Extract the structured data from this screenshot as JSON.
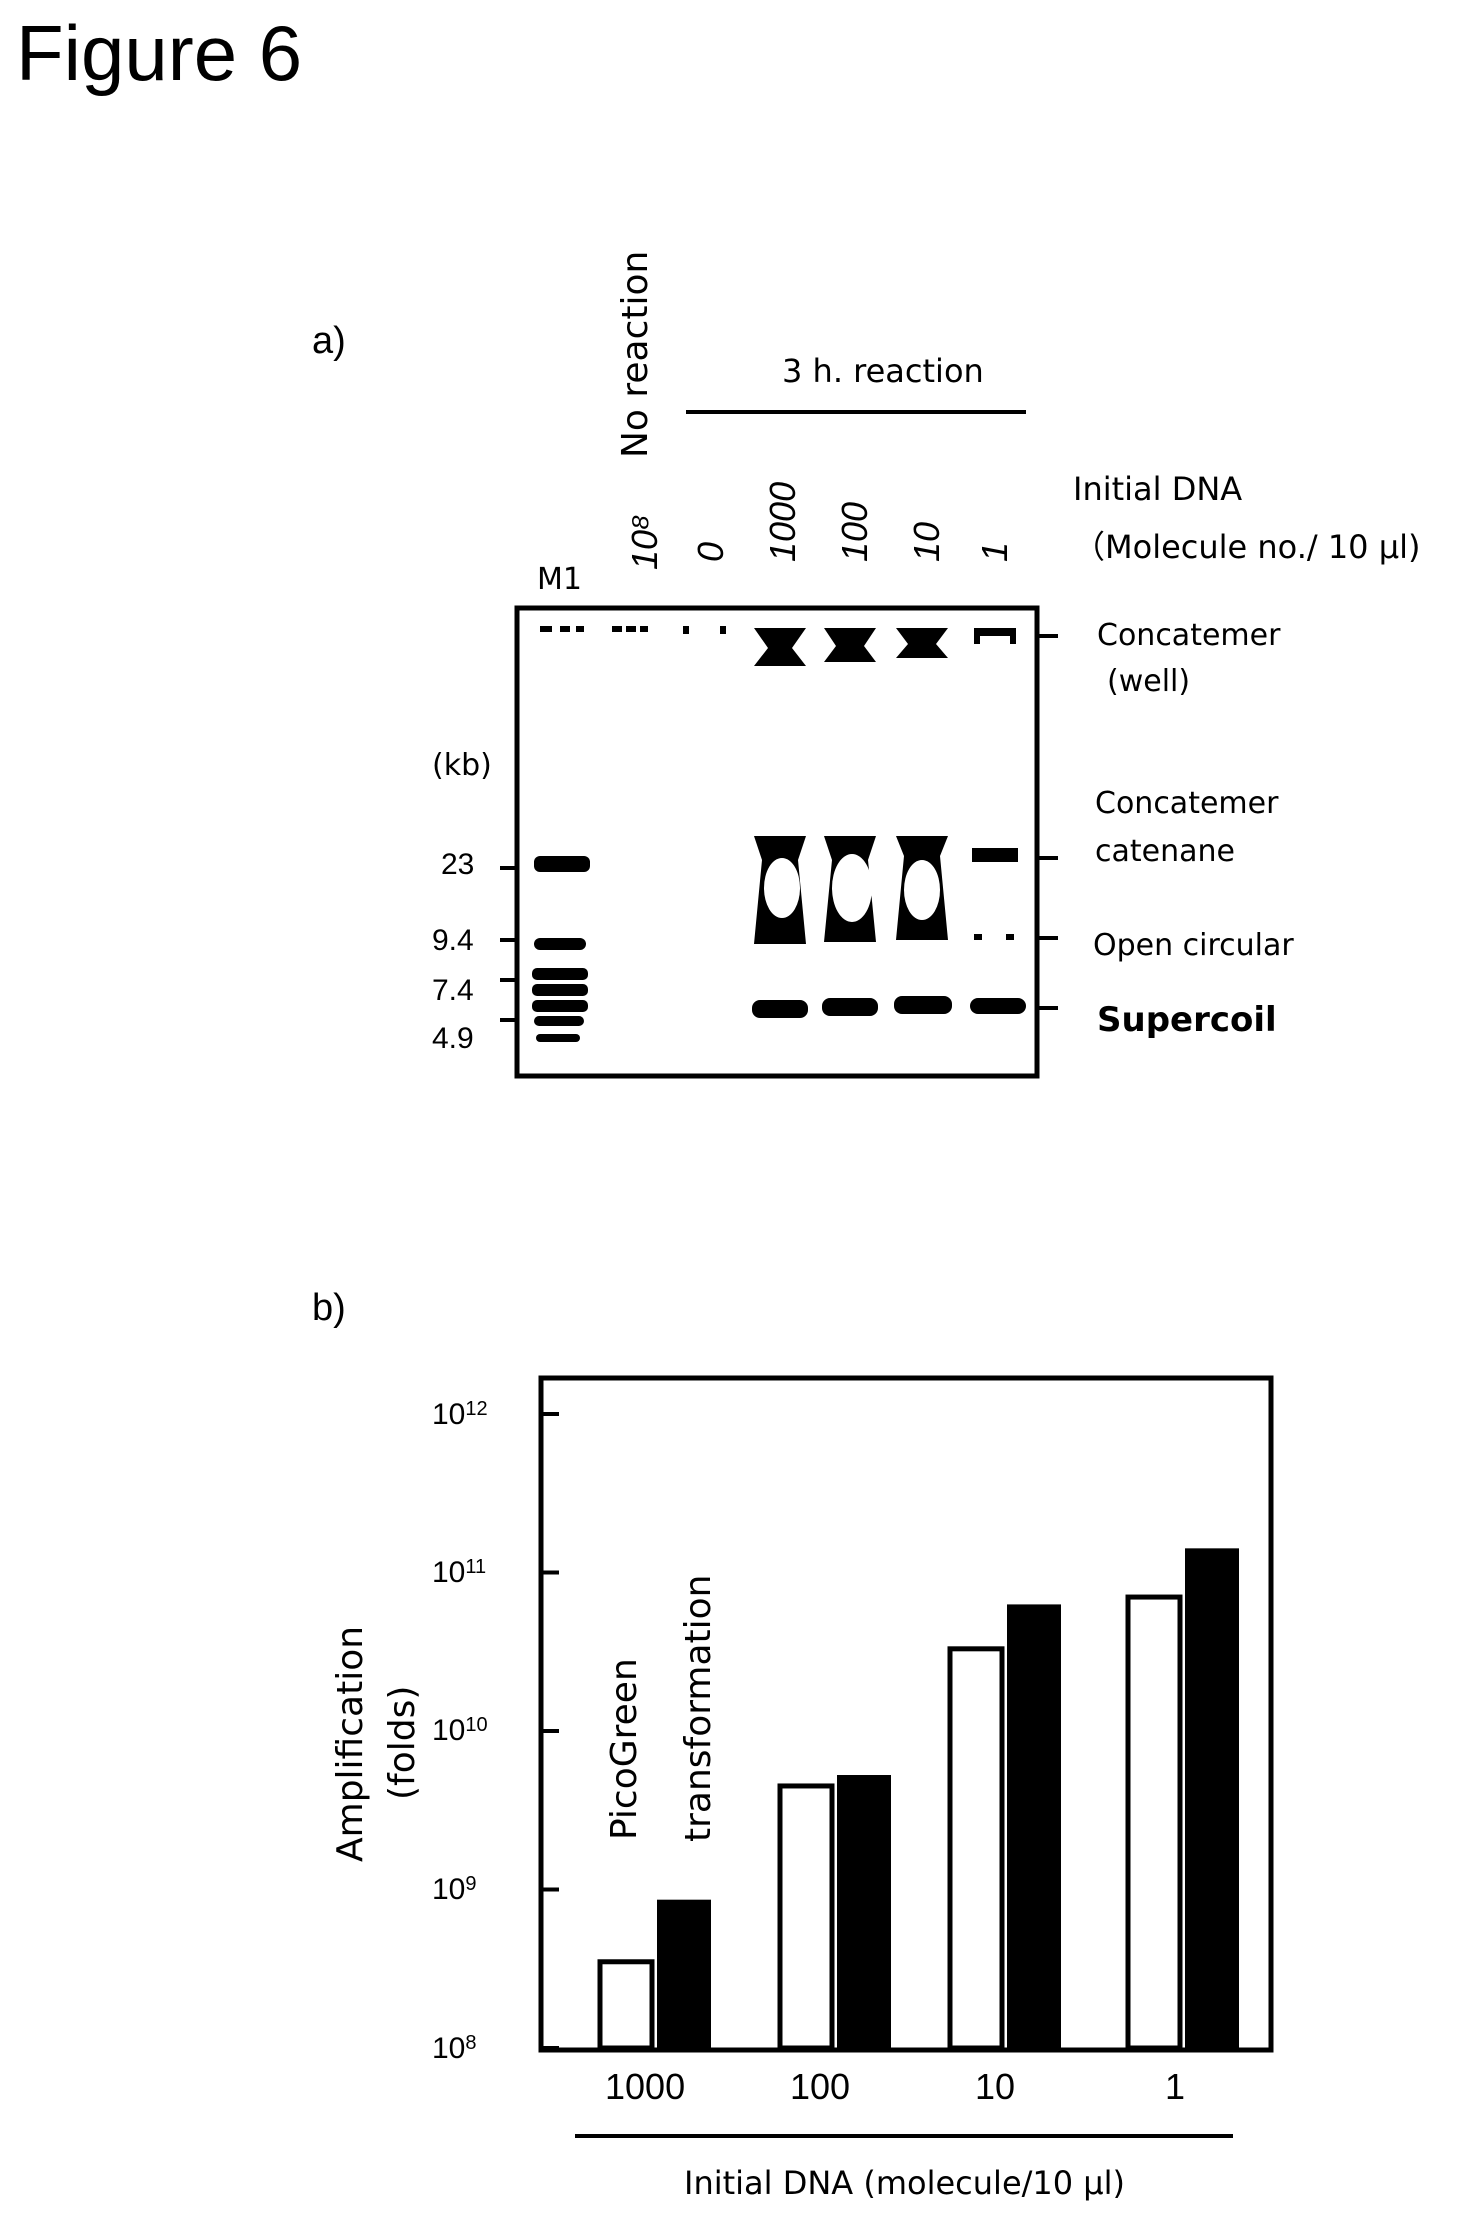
{
  "figure_title": "Figure 6",
  "panel_a": {
    "label": "a)",
    "header_no_reaction": "No reaction",
    "header_reaction": "3 h. reaction",
    "initial_dna_label": "Initial DNA",
    "initial_dna_unit": "（Molecule no./ 10 μl)",
    "marker_lane": "M1",
    "lanes": [
      "10⁸",
      "0",
      "1000",
      "100",
      "10",
      "1"
    ],
    "kb_label": "(kb)",
    "size_markers": [
      "23",
      "9.4",
      "7.4",
      "4.9"
    ],
    "band_labels": {
      "concatemer_well_1": "Concatemer",
      "concatemer_well_2": "(well)",
      "catenane_1": "Concatemer",
      "catenane_2": "catenane",
      "open_circular": "Open circular",
      "supercoil": "Supercoil"
    }
  },
  "panel_b": {
    "label": "b)",
    "ylabel_1": "Amplification",
    "ylabel_2": "(folds)",
    "xlabel": "Initial DNA (molecule/10 μl)",
    "legend_open": "PicoGreen",
    "legend_filled": "transformation",
    "y_ticks": [
      {
        "base": "10",
        "exp": "12"
      },
      {
        "base": "10",
        "exp": "11"
      },
      {
        "base": "10",
        "exp": "10"
      },
      {
        "base": "10",
        "exp": "9"
      },
      {
        "base": "10",
        "exp": "8"
      }
    ]
  },
  "chart_data": {
    "type": "bar",
    "categories": [
      "1000",
      "100",
      "10",
      "1"
    ],
    "series": [
      {
        "name": "PicoGreen",
        "values": [
          350000000.0,
          4500000000.0,
          33000000000.0,
          70000000000.0
        ],
        "color": "#ffffff"
      },
      {
        "name": "transformation",
        "values": [
          850000000.0,
          5200000000.0,
          62000000000.0,
          140000000000.0
        ],
        "color": "#000000"
      }
    ],
    "xlabel": "Initial DNA (molecule/10 μl)",
    "ylabel": "Amplification (folds)",
    "yscale": "log",
    "ylim": [
      100000000.0,
      1000000000000.0
    ],
    "grid": false
  }
}
